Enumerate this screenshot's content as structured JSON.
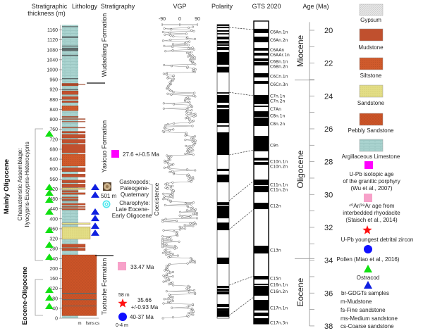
{
  "headers": {
    "thickness": [
      "Stratigraphic",
      "thickness (m)"
    ],
    "lithology": "Lithology",
    "stratigraphy": "Stratigraphy",
    "vgp": "VGP",
    "polarity": "Polarity",
    "gts": "GTS 2020",
    "age": "Age (Ma)"
  },
  "thickness_axis": {
    "ticks": [
      0,
      40,
      80,
      120,
      160,
      200,
      240,
      280,
      320,
      360,
      400,
      440,
      480,
      520,
      560,
      600,
      640,
      680,
      720,
      760,
      800,
      840,
      880,
      920,
      960,
      1000,
      1040,
      1080,
      1120,
      1160
    ]
  },
  "grain_size_labels": [
    "m",
    "fs",
    "ms",
    "cs"
  ],
  "formations": {
    "wudaoliang": "Wudaoliang Formation",
    "yaxicuo": "Yaxicuo Formation",
    "tuotuohe": "Tuotuohe Formation"
  },
  "age_groups": {
    "mainly_oligocene": "Mainly Oligocene",
    "assemblage": [
      "Characteristic Assemblage:",
      "Ilyocypris-Eucypris-Heterocypris"
    ],
    "eocene_oligocene": "Eocene-Oligocene"
  },
  "dates": {
    "upb_porphyry": "27.6 +/-0.5 Ma",
    "ar_ar": "33.47 Ma",
    "zircon_depth": "58 m",
    "zircon_age": [
      "35.66",
      "+/-0.93 Ma"
    ],
    "pollen_age": "40-37 Ma",
    "pollen_depth": "0-4 m"
  },
  "fossils": {
    "gastropod_depth": "501 m",
    "gastropods": [
      "Gastropods:",
      "Paleogene-",
      "Quaternary"
    ],
    "charophyte": [
      "Charophyte:",
      "Late Eocene-",
      "Early Oligocene"
    ],
    "coexistence": "Coexistence"
  },
  "samples": {
    "ostracod_depths_m": [
      742,
      527,
      504,
      476,
      428,
      354,
      295,
      246,
      113,
      82,
      48
    ],
    "brgdgt_depths_m": [
      527,
      496,
      428,
      402,
      371,
      343
    ]
  },
  "lithology": {
    "section_top_m": 1180,
    "base_type": "argillaceous_limestone",
    "layers": [
      {
        "bottom": 10,
        "top": 255,
        "type": "pebbly_sandstone",
        "grain": "cs"
      },
      {
        "bottom": 48,
        "top": 50,
        "type": "dark",
        "grain": "cs"
      },
      {
        "bottom": 73,
        "top": 76,
        "type": "dark",
        "grain": "cs"
      },
      {
        "bottom": 98,
        "top": 102,
        "type": "dark",
        "grain": "cs"
      },
      {
        "bottom": 272,
        "top": 282,
        "type": "mudstone",
        "grain": "fs"
      },
      {
        "bottom": 285,
        "top": 298,
        "type": "mudstone",
        "grain": "fs"
      },
      {
        "bottom": 318,
        "top": 368,
        "type": "sandstone",
        "grain": "ms"
      },
      {
        "bottom": 378,
        "top": 383,
        "type": "sandstone",
        "grain": "ms"
      },
      {
        "bottom": 436,
        "top": 441,
        "type": "mudstone",
        "grain": "fs"
      },
      {
        "bottom": 446,
        "top": 450,
        "type": "mudstone",
        "grain": "fs"
      },
      {
        "bottom": 455,
        "top": 462,
        "type": "mudstone",
        "grain": "fs"
      },
      {
        "bottom": 470,
        "top": 472,
        "type": "dark",
        "grain": "m"
      },
      {
        "bottom": 474,
        "top": 479,
        "type": "mudstone",
        "grain": "m"
      },
      {
        "bottom": 483,
        "top": 488,
        "type": "mudstone",
        "grain": "m"
      },
      {
        "bottom": 498,
        "top": 505,
        "type": "mudstone",
        "grain": "fs"
      },
      {
        "bottom": 508,
        "top": 514,
        "type": "mudstone",
        "grain": "m"
      },
      {
        "bottom": 518,
        "top": 524,
        "type": "sandstone",
        "grain": "fs"
      },
      {
        "bottom": 526,
        "top": 540,
        "type": "mudstone",
        "grain": "fs"
      },
      {
        "bottom": 545,
        "top": 556,
        "type": "mudstone",
        "grain": "fs"
      },
      {
        "bottom": 568,
        "top": 580,
        "type": "mudstone",
        "grain": "fs"
      },
      {
        "bottom": 590,
        "top": 606,
        "type": "mudstone",
        "grain": "fs"
      },
      {
        "bottom": 612,
        "top": 660,
        "type": "siltstone",
        "grain": "fs"
      },
      {
        "bottom": 665,
        "top": 700,
        "type": "mudstone",
        "grain": "fs"
      },
      {
        "bottom": 705,
        "top": 720,
        "type": "mudstone",
        "grain": "fs"
      },
      {
        "bottom": 725,
        "top": 740,
        "type": "mudstone",
        "grain": "fs"
      },
      {
        "bottom": 745,
        "top": 752,
        "type": "mudstone",
        "grain": "fs"
      },
      {
        "bottom": 765,
        "top": 768,
        "type": "mudstone",
        "grain": "fs"
      },
      {
        "bottom": 790,
        "top": 792,
        "type": "mudstone",
        "grain": "fs"
      },
      {
        "bottom": 800,
        "top": 803,
        "type": "mudstone",
        "grain": "fs"
      },
      {
        "bottom": 808,
        "top": 812,
        "type": "mudstone",
        "grain": "m"
      },
      {
        "bottom": 835,
        "top": 855,
        "type": "siltstone",
        "grain": "m"
      },
      {
        "bottom": 868,
        "top": 875,
        "type": "mudstone",
        "grain": "m"
      },
      {
        "bottom": 880,
        "top": 892,
        "type": "mudstone",
        "grain": "m"
      },
      {
        "bottom": 900,
        "top": 915,
        "type": "mudstone",
        "grain": "m"
      },
      {
        "bottom": 918,
        "top": 922,
        "type": "dark",
        "grain": "m"
      },
      {
        "bottom": 935,
        "top": 945,
        "type": "mudstone",
        "grain": "m"
      },
      {
        "bottom": 940,
        "top": 942,
        "type": "mudstone",
        "grain": "fs"
      },
      {
        "bottom": 962,
        "top": 966,
        "type": "dark",
        "grain": "m"
      },
      {
        "bottom": 1055,
        "top": 1060,
        "type": "dark",
        "grain": "m"
      },
      {
        "bottom": 1075,
        "top": 1088,
        "type": "dark",
        "grain": "m"
      },
      {
        "bottom": 1093,
        "top": 1097,
        "type": "dark",
        "grain": "m"
      },
      {
        "bottom": 1128,
        "top": 1134,
        "type": "dark",
        "grain": "m"
      },
      {
        "bottom": 1172,
        "top": 1175,
        "type": "dark",
        "grain": "m"
      }
    ]
  },
  "vgp_axis": {
    "ticks": [
      -90,
      0,
      90
    ],
    "range": [
      -90,
      90
    ]
  },
  "polarity": {
    "normal_intervals_m": [
      [
        1176,
        1181
      ],
      [
        1167,
        1173
      ],
      [
        1153,
        1159
      ],
      [
        1142,
        1147
      ],
      [
        1122,
        1133
      ],
      [
        1105,
        1116
      ],
      [
        1096,
        1102
      ],
      [
        1079,
        1091
      ],
      [
        1020,
        1071
      ],
      [
        989,
        1012
      ],
      [
        904,
        909
      ],
      [
        867,
        898
      ],
      [
        847,
        858
      ],
      [
        785,
        841
      ],
      [
        771,
        776
      ],
      [
        657,
        748
      ],
      [
        592,
        601
      ],
      [
        547,
        578
      ],
      [
        456,
        467
      ],
      [
        402,
        453
      ],
      [
        354,
        385
      ],
      [
        218,
        244
      ],
      [
        122,
        130
      ],
      [
        110,
        119
      ],
      [
        96,
        108
      ],
      [
        45,
        57
      ],
      [
        31,
        40
      ],
      [
        6,
        31
      ]
    ]
  },
  "gts": {
    "range_ma": [
      19.44,
      37.87
    ],
    "normal_intervals_ma": [
      [
        19.91,
        20.17
      ],
      [
        20.39,
        20.73
      ],
      [
        21.07,
        21.24
      ],
      [
        21.37,
        21.54
      ],
      [
        21.71,
        21.89
      ],
      [
        21.93,
        22.14
      ],
      [
        22.61,
        22.87
      ],
      [
        23.09,
        23.26
      ],
      [
        23.94,
        24.5
      ],
      [
        24.59,
        24.67
      ],
      [
        24.93,
        25.27
      ],
      [
        25.31,
        25.83
      ],
      [
        26.43,
        27.37
      ],
      [
        27.76,
        27.93
      ],
      [
        28.02,
        28.19
      ],
      [
        29.09,
        29.43
      ],
      [
        29.47,
        29.86
      ],
      [
        30.5,
        30.89
      ],
      [
        33.12,
        33.59
      ],
      [
        34.96,
        35.17
      ],
      [
        35.43,
        35.52
      ],
      [
        35.56,
        36.16
      ],
      [
        36.42,
        37.06
      ],
      [
        37.19,
        37.4
      ],
      [
        37.53,
        37.87
      ]
    ],
    "chrons": [
      {
        "label": "C6An.1n",
        "age": 20.1
      },
      {
        "label": "C6An.2n",
        "age": 20.6
      },
      {
        "label": "C6AAn",
        "age": 21.2
      },
      {
        "label": "C6AAr.1n",
        "age": 21.5
      },
      {
        "label": "C6Bn.1n",
        "age": 21.9
      },
      {
        "label": "C6Bn.2n",
        "age": 22.2
      },
      {
        "label": "C6Cn.1n",
        "age": 22.8
      },
      {
        "label": "C6Cn.3n",
        "age": 23.3
      },
      {
        "label": "C7n.1n",
        "age": 24.0
      },
      {
        "label": "C7n.2n",
        "age": 24.3
      },
      {
        "label": "C7An",
        "age": 24.8
      },
      {
        "label": "C8n.1n",
        "age": 25.2
      },
      {
        "label": "C8n.2n",
        "age": 25.7
      },
      {
        "label": "C9n",
        "age": 27.0
      },
      {
        "label": "C10n.1n",
        "age": 28.0
      },
      {
        "label": "C10n.2n",
        "age": 28.3
      },
      {
        "label": "C11n.1n",
        "age": 29.4
      },
      {
        "label": "C11n.2n",
        "age": 29.7
      },
      {
        "label": "C12n",
        "age": 30.7
      },
      {
        "label": "C13n",
        "age": 33.4
      },
      {
        "label": "C15n",
        "age": 35.1
      },
      {
        "label": "C16n.1n",
        "age": 35.5
      },
      {
        "label": "C16n.2n",
        "age": 35.9
      },
      {
        "label": "C17n.1n",
        "age": 36.9
      },
      {
        "label": "C17n.3n",
        "age": 37.8
      }
    ]
  },
  "correlation_ties": [
    {
      "depth_m": 1170,
      "age_ma": 19.96
    },
    {
      "depth_m": 909,
      "age_ma": 23.99
    },
    {
      "depth_m": 657,
      "age_ma": 27.29
    },
    {
      "depth_m": 473,
      "age_ma": 29.17
    },
    {
      "depth_m": 357,
      "age_ma": 30.89
    },
    {
      "depth_m": 133,
      "age_ma": 34.96
    },
    {
      "depth_m": 11,
      "age_ma": 36.24
    }
  ],
  "age_axis": {
    "range": [
      19.5,
      38
    ],
    "labels": [
      20,
      22,
      24,
      26,
      28,
      30,
      32,
      34,
      36,
      38
    ],
    "epochs": [
      {
        "name": "Miocene",
        "from": 19.5,
        "to": 23.03
      },
      {
        "name": "Oligocene",
        "from": 23.03,
        "to": 33.9
      },
      {
        "name": "Eocene",
        "from": 33.9,
        "to": 38
      }
    ]
  },
  "legend": {
    "gypsum": "Gypsum",
    "mudstone": "Mudstone",
    "siltstone": "Siltstone",
    "sandstone": "Sandstone",
    "pebbly_sandstone": "Pebbly Sandstone",
    "argillaceous_limestone": "Argillaceous Limestone",
    "upb": [
      "U-Pb isotopic age",
      "of the granitic porphyry",
      "(Wu et al., 2007)"
    ],
    "arar": [
      "⁴⁰Ar/³⁹Ar age from",
      "interbedded rhyodacite",
      "(Staisch et al., 2014)"
    ],
    "zircon": "U-Pb youngest detrital zircon",
    "pollen": "Pollen (Miao et al., 2016)",
    "ostracod": "Ostracod",
    "brgdgt": "br-GDGTs samples",
    "abbreviations": [
      "m-Mudstone",
      "fs-Fine sandstone",
      "ms-Medium sandstone",
      "cs-Coarse sandstone"
    ]
  },
  "colors": {
    "mudstone": "#c0502e",
    "siltstone": "#cf5a2c",
    "pebbly_sandstone": "#cc5428",
    "sandstone": "#e3de86",
    "argillaceous_limestone": "#a9d3cf",
    "gypsum": "#e2e2e2",
    "dark": "#5d6a6a",
    "upb": "#ff00ff",
    "arar": "#f7a1c9",
    "zircon": "#ff1010",
    "pollen": "#1010ff",
    "ostracod": "#10e010",
    "brgdgt": "#1020e0"
  }
}
